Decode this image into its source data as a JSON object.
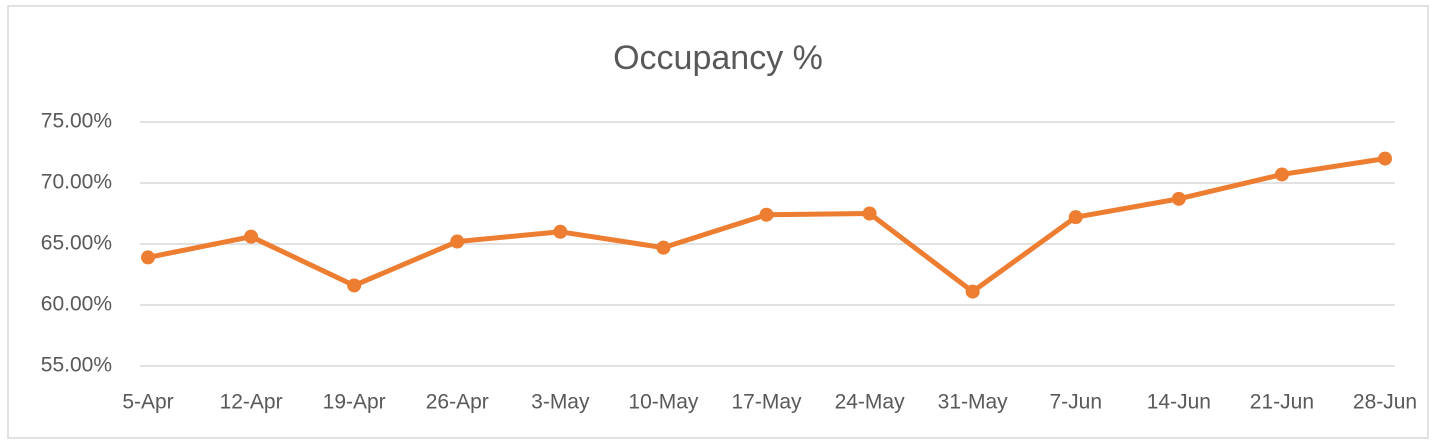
{
  "chart_data": {
    "type": "line",
    "title": "Occupancy %",
    "categories": [
      "5-Apr",
      "12-Apr",
      "19-Apr",
      "26-Apr",
      "3-May",
      "10-May",
      "17-May",
      "24-May",
      "31-May",
      "7-Jun",
      "14-Jun",
      "21-Jun",
      "28-Jun"
    ],
    "values": [
      63.9,
      65.6,
      61.6,
      65.2,
      66.0,
      64.7,
      67.4,
      67.5,
      61.1,
      67.2,
      68.7,
      70.7,
      72.0
    ],
    "color": "#ed7d31",
    "ylim": [
      55,
      75
    ],
    "yticks": [
      {
        "value": 55,
        "label": "55.00%"
      },
      {
        "value": 60,
        "label": "60.00%"
      },
      {
        "value": 65,
        "label": "65.00%"
      },
      {
        "value": 70,
        "label": "70.00%"
      },
      {
        "value": 75,
        "label": "75.00%"
      }
    ],
    "grid": true
  }
}
